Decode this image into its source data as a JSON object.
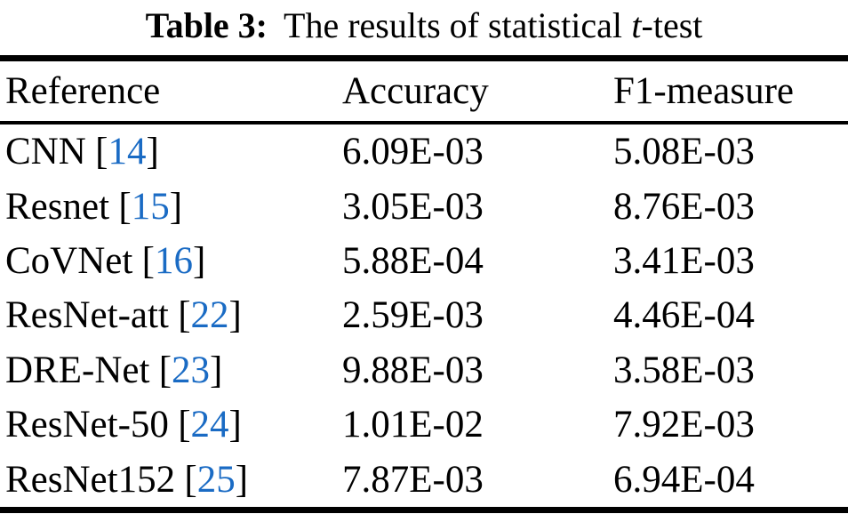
{
  "title": {
    "bold_label": "Table 3:",
    "rest": "The results of statistical",
    "italic_term": "t",
    "suffix": "-test"
  },
  "table": {
    "columns": {
      "reference": "Reference",
      "accuracy": "Accuracy",
      "f1_measure": "F1-measure"
    },
    "citation_brackets": {
      "open": "[",
      "close": "]"
    },
    "rows": [
      {
        "reference_name": "CNN",
        "citation": "14",
        "accuracy": "6.09E-03",
        "f1_measure": "5.08E-03"
      },
      {
        "reference_name": "Resnet",
        "citation": "15",
        "accuracy": "3.05E-03",
        "f1_measure": "8.76E-03"
      },
      {
        "reference_name": "CoVNet",
        "citation": "16",
        "accuracy": "5.88E-04",
        "f1_measure": "3.41E-03"
      },
      {
        "reference_name": "ResNet-att",
        "citation": "22",
        "accuracy": "2.59E-03",
        "f1_measure": "4.46E-04"
      },
      {
        "reference_name": "DRE-Net",
        "citation": "23",
        "accuracy": "9.88E-03",
        "f1_measure": "3.58E-03"
      },
      {
        "reference_name": "ResNet-50",
        "citation": "24",
        "accuracy": "1.01E-02",
        "f1_measure": "7.92E-03"
      },
      {
        "reference_name": "ResNet152",
        "citation": "25",
        "accuracy": "7.87E-03",
        "f1_measure": "6.94E-04"
      }
    ]
  },
  "colors": {
    "citation_link": "#1a6bc4",
    "text": "#000000",
    "background": "#ffffff"
  },
  "chart_data": {
    "type": "table",
    "title": "Table 3: The results of statistical t-test",
    "columns": [
      "Reference",
      "Accuracy",
      "F1-measure"
    ],
    "rows": [
      [
        "CNN [14]",
        "6.09E-03",
        "5.08E-03"
      ],
      [
        "Resnet [15]",
        "3.05E-03",
        "8.76E-03"
      ],
      [
        "CoVNet [16]",
        "5.88E-04",
        "3.41E-03"
      ],
      [
        "ResNet-att [22]",
        "2.59E-03",
        "4.46E-04"
      ],
      [
        "DRE-Net [23]",
        "9.88E-03",
        "3.58E-03"
      ],
      [
        "ResNet-50 [24]",
        "1.01E-02",
        "7.92E-03"
      ],
      [
        "ResNet152 [25]",
        "7.87E-03",
        "6.94E-04"
      ]
    ]
  }
}
